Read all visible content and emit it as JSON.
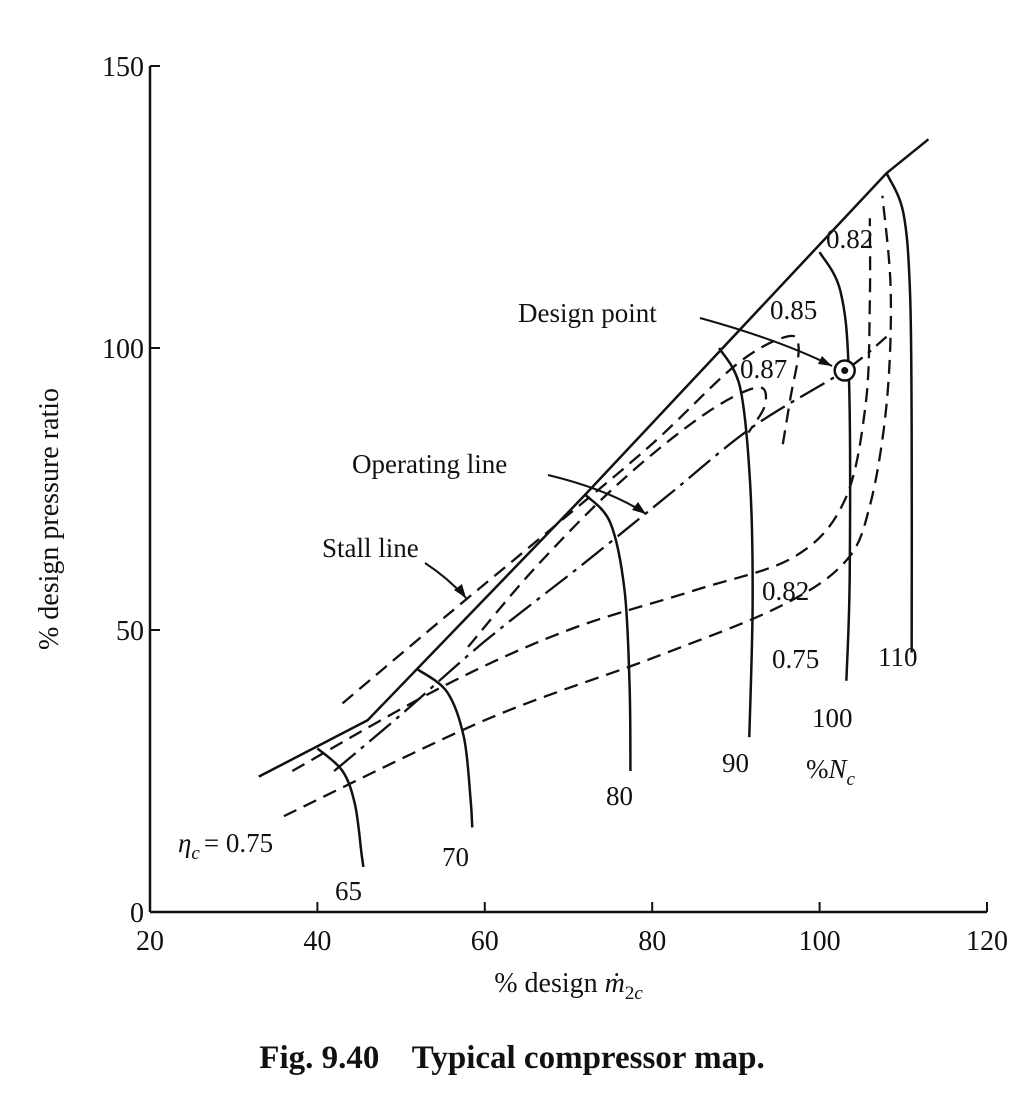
{
  "caption": {
    "figure_number": "Fig. 9.40",
    "title": "Typical compressor map."
  },
  "chart_data": {
    "type": "line",
    "title": "Typical compressor map.",
    "xlabel": "% design ṁ2c",
    "ylabel": "% design pressure ratio",
    "xlim": [
      20,
      120
    ],
    "ylim": [
      0,
      150
    ],
    "xticks": [
      "20",
      "40",
      "60",
      "80",
      "100",
      "120"
    ],
    "yticks": [
      "0",
      "50",
      "100",
      "150"
    ],
    "grid": false,
    "stall_line": {
      "name": "Stall line",
      "points": [
        [
          33,
          24
        ],
        [
          46,
          34
        ],
        [
          72,
          74
        ],
        [
          108,
          131
        ],
        [
          113,
          137
        ]
      ]
    },
    "operating_line": {
      "name": "Operating line",
      "points": [
        [
          42,
          25
        ],
        [
          50,
          35
        ],
        [
          60,
          48
        ],
        [
          72,
          62
        ],
        [
          82,
          74
        ],
        [
          92,
          86
        ],
        [
          103,
          96
        ],
        [
          108,
          102
        ]
      ]
    },
    "design_point": {
      "label": "Design point",
      "x": 103,
      "y": 96
    },
    "speed_lines": {
      "legend": "%Nc",
      "series": [
        {
          "name": "65",
          "points": [
            [
              40,
              29
            ],
            [
              43,
              25
            ],
            [
              44.5,
              19
            ],
            [
              45.3,
              10
            ],
            [
              45.5,
              8
            ]
          ]
        },
        {
          "name": "70",
          "points": [
            [
              52,
              43
            ],
            [
              55.5,
              39
            ],
            [
              57.5,
              31
            ],
            [
              58.3,
              20
            ],
            [
              58.5,
              15
            ]
          ]
        },
        {
          "name": "80",
          "points": [
            [
              72,
              74
            ],
            [
              75,
              69
            ],
            [
              76.7,
              57
            ],
            [
              77.3,
              40
            ],
            [
              77.4,
              25
            ]
          ]
        },
        {
          "name": "90",
          "points": [
            [
              88,
              100
            ],
            [
              90.5,
              93
            ],
            [
              91.7,
              76
            ],
            [
              92,
              55
            ],
            [
              91.6,
              31
            ]
          ]
        },
        {
          "name": "100",
          "points": [
            [
              100,
              117
            ],
            [
              102.5,
              110
            ],
            [
              103.5,
              95
            ],
            [
              103.6,
              60
            ],
            [
              103.2,
              41
            ]
          ]
        },
        {
          "name": "110",
          "points": [
            [
              108,
              131
            ],
            [
              110,
              124
            ],
            [
              110.8,
              110
            ],
            [
              111,
              85
            ],
            [
              111,
              46
            ]
          ]
        }
      ]
    },
    "efficiency_contours": [
      {
        "name": "0.75",
        "points": [
          [
            36,
            17
          ],
          [
            60,
            34
          ],
          [
            80,
            45
          ],
          [
            95,
            54
          ],
          [
            103,
            62
          ],
          [
            106,
            72
          ],
          [
            108,
            90
          ],
          [
            108.5,
            110
          ],
          [
            107.5,
            127
          ]
        ]
      },
      {
        "name": "0.82",
        "points": [
          [
            37,
            25
          ],
          [
            55,
            40
          ],
          [
            70,
            50
          ],
          [
            85,
            57
          ],
          [
            97,
            63
          ],
          [
            103,
            73
          ],
          [
            105.5,
            90
          ],
          [
            106,
            108
          ],
          [
            106,
            123
          ]
        ]
      },
      {
        "name": "0.85",
        "points": [
          [
            43,
            37
          ],
          [
            55,
            52
          ],
          [
            68,
            68
          ],
          [
            80,
            83
          ],
          [
            90,
            97
          ],
          [
            96,
            102
          ],
          [
            97.5,
            100
          ],
          [
            96.5,
            91
          ],
          [
            95.5,
            82
          ]
        ]
      },
      {
        "name": "0.87",
        "points": [
          [
            58,
            47
          ],
          [
            66,
            61
          ],
          [
            76,
            76
          ],
          [
            86,
            88
          ],
          [
            92.5,
            93
          ],
          [
            93.5,
            90
          ],
          [
            91.5,
            85
          ]
        ]
      }
    ]
  },
  "annotations": {
    "stall_line": "Stall line",
    "operating_line": "Operating line",
    "design_point": "Design point",
    "eta_symbol": "η",
    "eta_subscript": "c",
    "eta_value": "= 0.75",
    "eff_label_082_top": "0.82",
    "eff_label_085": "0.85",
    "eff_label_087": "0.87",
    "eff_label_082_low": "0.82",
    "eff_label_075_low": "0.75",
    "speed_65": "65",
    "speed_70": "70",
    "speed_80": "80",
    "speed_90": "90",
    "speed_100": "100",
    "speed_110": "110",
    "nc_percent": "%",
    "nc_symbol": "N",
    "nc_subscript": "c"
  }
}
